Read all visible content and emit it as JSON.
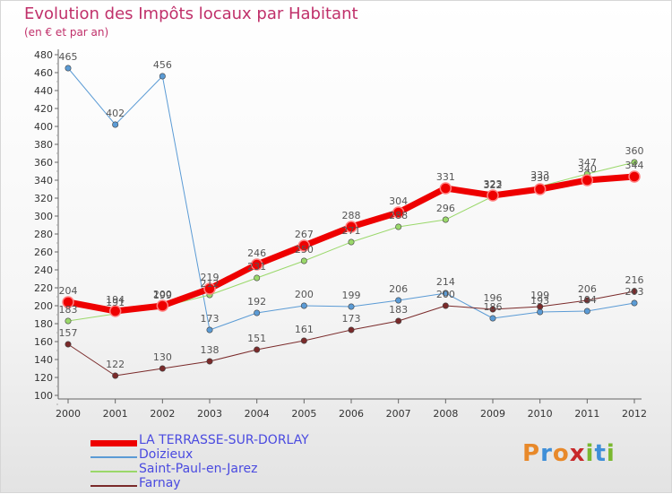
{
  "title": "Evolution des Impôts locaux par Habitant",
  "subtitle": "(en € et par an)",
  "logo": {
    "letters": [
      "P",
      "r",
      "o",
      "x",
      "i",
      "t",
      "i"
    ],
    "colors": [
      "#e8892a",
      "#3f8fd8",
      "#e8892a",
      "#c8282a",
      "#7ab830",
      "#3f8fd8",
      "#7ab830"
    ]
  },
  "chart_data": {
    "type": "line",
    "title": "Evolution des Impôts locaux par Habitant",
    "subtitle": "(en € et par an)",
    "xlabel": "",
    "ylabel": "",
    "x": [
      "2000",
      "2001",
      "2002",
      "2003",
      "2004",
      "2005",
      "2006",
      "2007",
      "2008",
      "2009",
      "2010",
      "2011",
      "2012"
    ],
    "ylim": [
      100,
      480
    ],
    "yticks": [
      100,
      120,
      140,
      160,
      180,
      200,
      220,
      240,
      260,
      280,
      300,
      320,
      340,
      360,
      380,
      400,
      420,
      440,
      460,
      480
    ],
    "grid": false,
    "legend_position": "bottom-left",
    "series": [
      {
        "name": "LA TERRASSE-SUR-DORLAY",
        "color": "#ee0000",
        "width": 7,
        "values": [
          204,
          194,
          200,
          219,
          246,
          267,
          288,
          304,
          331,
          323,
          330,
          340,
          344
        ],
        "labels": [
          "204",
          "194",
          "200",
          "219",
          "246",
          "267",
          "288",
          "304",
          "331",
          "323",
          "330",
          "340",
          "344"
        ]
      },
      {
        "name": "Doizieux",
        "color": "#5b9bd5",
        "width": 1,
        "values": [
          465,
          402,
          456,
          173,
          192,
          200,
          199,
          206,
          214,
          186,
          193,
          194,
          203
        ],
        "labels": [
          "465",
          "402",
          "456",
          "173",
          "192",
          "200",
          "199",
          "206",
          "214",
          "186",
          "193",
          "194",
          "203"
        ]
      },
      {
        "name": "Saint-Paul-en-Jarez",
        "color": "#9ad86a",
        "width": 1,
        "values": [
          183,
          191,
          199,
          212,
          231,
          250,
          271,
          288,
          296,
          322,
          333,
          347,
          360
        ],
        "labels": [
          "183",
          "191",
          "199",
          "212",
          "231",
          "250",
          "271",
          "288",
          "296",
          "322",
          "333",
          "347",
          "360"
        ]
      },
      {
        "name": "Farnay",
        "color": "#7a2a2a",
        "width": 1,
        "values": [
          157,
          122,
          130,
          138,
          151,
          161,
          173,
          183,
          200,
          196,
          199,
          206,
          216
        ],
        "labels": [
          "157",
          "122",
          "130",
          "138",
          "151",
          "161",
          "173",
          "183",
          "200",
          "196",
          "199",
          "206",
          "216"
        ]
      }
    ]
  }
}
